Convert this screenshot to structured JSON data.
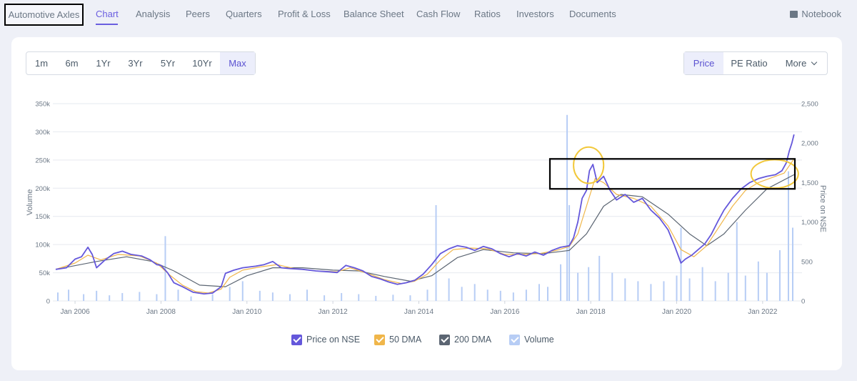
{
  "company": {
    "name": "Automotive Axles"
  },
  "nav": {
    "items": [
      {
        "label": "Chart",
        "active": true
      },
      {
        "label": "Analysis"
      },
      {
        "label": "Peers"
      },
      {
        "label": "Quarters"
      },
      {
        "label": "Profit & Loss"
      },
      {
        "label": "Balance Sheet"
      },
      {
        "label": "Cash Flow"
      },
      {
        "label": "Ratios"
      },
      {
        "label": "Investors"
      },
      {
        "label": "Documents"
      }
    ],
    "notebook_label": "Notebook",
    "notebook_icon": "book-icon"
  },
  "range_buttons": [
    "1m",
    "6m",
    "1Yr",
    "3Yr",
    "5Yr",
    "10Yr",
    "Max"
  ],
  "range_selected": "Max",
  "metric_buttons": [
    "Price",
    "PE Ratio",
    "More"
  ],
  "metric_selected": "Price",
  "colors": {
    "accent": "#6a5ee0",
    "price": "#6457db",
    "dma50": "#f0b64a",
    "dma200": "#5b6572",
    "volume": "#b7cdf5",
    "annotation_circle": "#f2c83a",
    "annotation_box": "#000000"
  },
  "chart_data": {
    "type": "line",
    "left_axis": {
      "label": "Volume",
      "range": [
        0,
        350000
      ],
      "ticks": [
        "0",
        "50k",
        "100k",
        "150k",
        "200k",
        "250k",
        "300k",
        "350k"
      ]
    },
    "right_axis": {
      "label": "Price on NSE",
      "range": [
        0,
        2500
      ],
      "ticks": [
        "0",
        "500",
        "1,000",
        "1,500",
        "2,000",
        "2,500"
      ]
    },
    "x_ticks": [
      "Jan 2006",
      "Jan 2008",
      "Jan 2010",
      "Jan 2012",
      "Jan 2014",
      "Jan 2016",
      "Jan 2018",
      "Jan 2020",
      "Jan 2022"
    ],
    "x_range": [
      2005.55,
      2022.75
    ],
    "grid": true,
    "legend_position": "bottom",
    "series": [
      {
        "name": "Price on NSE",
        "axis": "right",
        "color_key": "price",
        "points": [
          [
            2005.55,
            400
          ],
          [
            2005.8,
            420
          ],
          [
            2006.0,
            530
          ],
          [
            2006.15,
            560
          ],
          [
            2006.3,
            680
          ],
          [
            2006.4,
            590
          ],
          [
            2006.5,
            420
          ],
          [
            2006.7,
            520
          ],
          [
            2006.9,
            600
          ],
          [
            2007.1,
            630
          ],
          [
            2007.3,
            590
          ],
          [
            2007.55,
            570
          ],
          [
            2007.75,
            520
          ],
          [
            2007.9,
            460
          ],
          [
            2008.0,
            450
          ],
          [
            2008.15,
            360
          ],
          [
            2008.3,
            230
          ],
          [
            2008.5,
            180
          ],
          [
            2008.75,
            110
          ],
          [
            2009.0,
            90
          ],
          [
            2009.2,
            100
          ],
          [
            2009.4,
            180
          ],
          [
            2009.5,
            350
          ],
          [
            2009.7,
            390
          ],
          [
            2009.9,
            420
          ],
          [
            2010.2,
            440
          ],
          [
            2010.4,
            460
          ],
          [
            2010.6,
            500
          ],
          [
            2010.8,
            420
          ],
          [
            2011.0,
            410
          ],
          [
            2011.3,
            400
          ],
          [
            2011.6,
            380
          ],
          [
            2011.9,
            370
          ],
          [
            2012.1,
            360
          ],
          [
            2012.3,
            450
          ],
          [
            2012.5,
            420
          ],
          [
            2012.7,
            380
          ],
          [
            2012.9,
            310
          ],
          [
            2013.1,
            280
          ],
          [
            2013.3,
            240
          ],
          [
            2013.5,
            210
          ],
          [
            2013.7,
            230
          ],
          [
            2013.9,
            260
          ],
          [
            2014.1,
            340
          ],
          [
            2014.3,
            460
          ],
          [
            2014.5,
            600
          ],
          [
            2014.7,
            660
          ],
          [
            2014.9,
            700
          ],
          [
            2015.1,
            680
          ],
          [
            2015.3,
            640
          ],
          [
            2015.5,
            690
          ],
          [
            2015.7,
            660
          ],
          [
            2015.9,
            600
          ],
          [
            2016.1,
            560
          ],
          [
            2016.3,
            600
          ],
          [
            2016.5,
            570
          ],
          [
            2016.7,
            620
          ],
          [
            2016.9,
            580
          ],
          [
            2017.1,
            640
          ],
          [
            2017.3,
            680
          ],
          [
            2017.5,
            700
          ],
          [
            2017.6,
            800
          ],
          [
            2017.7,
            1000
          ],
          [
            2017.8,
            1300
          ],
          [
            2017.9,
            1400
          ],
          [
            2017.97,
            1650
          ],
          [
            2018.05,
            1730
          ],
          [
            2018.15,
            1500
          ],
          [
            2018.3,
            1580
          ],
          [
            2018.45,
            1400
          ],
          [
            2018.6,
            1280
          ],
          [
            2018.8,
            1350
          ],
          [
            2019.0,
            1250
          ],
          [
            2019.2,
            1300
          ],
          [
            2019.4,
            1150
          ],
          [
            2019.6,
            1050
          ],
          [
            2019.8,
            900
          ],
          [
            2019.95,
            700
          ],
          [
            2020.1,
            480
          ],
          [
            2020.2,
            530
          ],
          [
            2020.35,
            580
          ],
          [
            2020.5,
            650
          ],
          [
            2020.65,
            720
          ],
          [
            2020.8,
            840
          ],
          [
            2020.95,
            1000
          ],
          [
            2021.1,
            1150
          ],
          [
            2021.3,
            1300
          ],
          [
            2021.5,
            1420
          ],
          [
            2021.7,
            1500
          ],
          [
            2021.9,
            1550
          ],
          [
            2022.1,
            1580
          ],
          [
            2022.3,
            1600
          ],
          [
            2022.45,
            1650
          ],
          [
            2022.55,
            1750
          ],
          [
            2022.62,
            1900
          ],
          [
            2022.68,
            2000
          ],
          [
            2022.73,
            2110
          ]
        ]
      },
      {
        "name": "50 DMA",
        "axis": "right",
        "color_key": "dma50",
        "points": [
          [
            2005.55,
            400
          ],
          [
            2006.0,
            480
          ],
          [
            2006.3,
            580
          ],
          [
            2006.6,
            520
          ],
          [
            2007.0,
            590
          ],
          [
            2007.5,
            570
          ],
          [
            2007.9,
            480
          ],
          [
            2008.2,
            330
          ],
          [
            2008.5,
            200
          ],
          [
            2008.8,
            120
          ],
          [
            2009.1,
            100
          ],
          [
            2009.4,
            150
          ],
          [
            2009.6,
            300
          ],
          [
            2009.9,
            390
          ],
          [
            2010.3,
            430
          ],
          [
            2010.7,
            460
          ],
          [
            2011.1,
            410
          ],
          [
            2011.6,
            380
          ],
          [
            2012.1,
            370
          ],
          [
            2012.4,
            420
          ],
          [
            2012.8,
            350
          ],
          [
            2013.2,
            270
          ],
          [
            2013.6,
            220
          ],
          [
            2013.9,
            250
          ],
          [
            2014.2,
            340
          ],
          [
            2014.5,
            520
          ],
          [
            2014.8,
            650
          ],
          [
            2015.2,
            670
          ],
          [
            2015.6,
            660
          ],
          [
            2016.0,
            590
          ],
          [
            2016.4,
            590
          ],
          [
            2016.8,
            600
          ],
          [
            2017.2,
            640
          ],
          [
            2017.5,
            690
          ],
          [
            2017.7,
            850
          ],
          [
            2017.9,
            1200
          ],
          [
            2018.1,
            1550
          ],
          [
            2018.3,
            1500
          ],
          [
            2018.6,
            1350
          ],
          [
            2019.0,
            1300
          ],
          [
            2019.4,
            1200
          ],
          [
            2019.8,
            950
          ],
          [
            2020.1,
            650
          ],
          [
            2020.4,
            560
          ],
          [
            2020.7,
            700
          ],
          [
            2021.0,
            950
          ],
          [
            2021.3,
            1200
          ],
          [
            2021.6,
            1400
          ],
          [
            2021.9,
            1500
          ],
          [
            2022.2,
            1560
          ],
          [
            2022.5,
            1620
          ],
          [
            2022.73,
            1800
          ]
        ]
      },
      {
        "name": "200 DMA",
        "axis": "right",
        "color_key": "dma200",
        "points": [
          [
            2005.55,
            400
          ],
          [
            2006.5,
            500
          ],
          [
            2007.2,
            560
          ],
          [
            2007.8,
            500
          ],
          [
            2008.3,
            380
          ],
          [
            2008.9,
            200
          ],
          [
            2009.5,
            180
          ],
          [
            2010.0,
            320
          ],
          [
            2010.6,
            420
          ],
          [
            2011.3,
            420
          ],
          [
            2012.0,
            390
          ],
          [
            2012.6,
            380
          ],
          [
            2013.2,
            310
          ],
          [
            2013.8,
            250
          ],
          [
            2014.3,
            320
          ],
          [
            2014.9,
            550
          ],
          [
            2015.5,
            650
          ],
          [
            2016.2,
            610
          ],
          [
            2016.9,
            600
          ],
          [
            2017.5,
            640
          ],
          [
            2017.9,
            850
          ],
          [
            2018.3,
            1200
          ],
          [
            2018.7,
            1350
          ],
          [
            2019.2,
            1320
          ],
          [
            2019.8,
            1100
          ],
          [
            2020.3,
            850
          ],
          [
            2020.7,
            700
          ],
          [
            2021.1,
            850
          ],
          [
            2021.6,
            1150
          ],
          [
            2022.1,
            1420
          ],
          [
            2022.73,
            1600
          ]
        ]
      },
      {
        "name": "Volume",
        "axis": "left",
        "color_key": "volume",
        "kind": "bars",
        "points": [
          [
            2005.6,
            15000
          ],
          [
            2005.85,
            20000
          ],
          [
            2006.2,
            12000
          ],
          [
            2006.5,
            18000
          ],
          [
            2006.8,
            10000
          ],
          [
            2007.1,
            14000
          ],
          [
            2007.5,
            16000
          ],
          [
            2007.9,
            12000
          ],
          [
            2008.1,
            115000
          ],
          [
            2008.4,
            20000
          ],
          [
            2008.7,
            8000
          ],
          [
            2009.2,
            12000
          ],
          [
            2009.6,
            25000
          ],
          [
            2009.9,
            35000
          ],
          [
            2010.3,
            18000
          ],
          [
            2010.6,
            15000
          ],
          [
            2011.0,
            12000
          ],
          [
            2011.4,
            20000
          ],
          [
            2011.8,
            10000
          ],
          [
            2012.2,
            14000
          ],
          [
            2012.6,
            12000
          ],
          [
            2013.0,
            9000
          ],
          [
            2013.4,
            11000
          ],
          [
            2013.8,
            10000
          ],
          [
            2014.2,
            20000
          ],
          [
            2014.4,
            170000
          ],
          [
            2014.7,
            40000
          ],
          [
            2015.0,
            25000
          ],
          [
            2015.3,
            30000
          ],
          [
            2015.6,
            20000
          ],
          [
            2015.9,
            18000
          ],
          [
            2016.2,
            15000
          ],
          [
            2016.5,
            20000
          ],
          [
            2016.8,
            30000
          ],
          [
            2017.0,
            25000
          ],
          [
            2017.3,
            65000
          ],
          [
            2017.45,
            330000
          ],
          [
            2017.5,
            170000
          ],
          [
            2017.7,
            50000
          ],
          [
            2017.95,
            60000
          ],
          [
            2018.2,
            80000
          ],
          [
            2018.5,
            50000
          ],
          [
            2018.8,
            40000
          ],
          [
            2019.1,
            35000
          ],
          [
            2019.4,
            30000
          ],
          [
            2019.7,
            35000
          ],
          [
            2020.0,
            45000
          ],
          [
            2020.1,
            130000
          ],
          [
            2020.3,
            40000
          ],
          [
            2020.6,
            60000
          ],
          [
            2020.9,
            35000
          ],
          [
            2021.2,
            50000
          ],
          [
            2021.4,
            140000
          ],
          [
            2021.6,
            45000
          ],
          [
            2021.9,
            70000
          ],
          [
            2022.1,
            50000
          ],
          [
            2022.4,
            90000
          ],
          [
            2022.6,
            230000
          ],
          [
            2022.7,
            130000
          ]
        ]
      }
    ],
    "annotations": [
      {
        "shape": "ellipse",
        "cx_year": 2017.95,
        "cy_price": 1720,
        "rx_years": 0.35,
        "ry_price": 230,
        "color_key": "annotation_circle"
      },
      {
        "shape": "ellipse",
        "cx_year": 2022.28,
        "cy_price": 1610,
        "rx_years": 0.55,
        "ry_price": 180,
        "color_key": "annotation_circle"
      },
      {
        "shape": "rect",
        "x0_year": 2017.05,
        "x1_year": 2022.75,
        "y0_price": 1420,
        "y1_price": 1800,
        "color_key": "annotation_box"
      }
    ]
  }
}
